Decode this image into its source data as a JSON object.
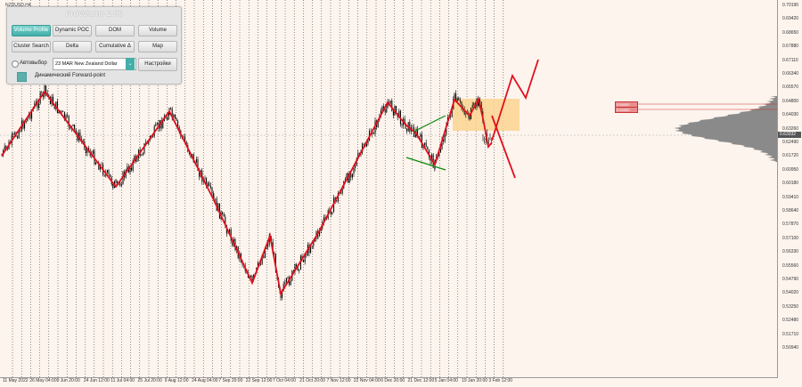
{
  "symbol_label": "NZDUSD,H4",
  "panel": {
    "title": "ProVolume 2.06",
    "buttons": [
      {
        "label": "Volume Profile",
        "active": true
      },
      {
        "label": "Dynamic POC",
        "active": false
      },
      {
        "label": "DOM",
        "active": false
      },
      {
        "label": "Volume",
        "active": false
      },
      {
        "label": "Cluster Search",
        "active": false
      },
      {
        "label": "Delta",
        "active": false
      },
      {
        "label": "Cumulative Δ",
        "active": false
      },
      {
        "label": "Map",
        "active": false
      }
    ],
    "auto_select_label": "Автовыбор",
    "symbol_select_value": "23 MAR New Zealand Dollar",
    "settings_label": "Настройки",
    "forward_point_label": "Динамический Forward-point"
  },
  "price_axis": [
    "0.70190",
    "0.69420",
    "0.68650",
    "0.67880",
    "0.67110",
    "0.66340",
    "0.65570",
    "0.64800",
    "0.64030",
    "0.63260",
    "0.62490",
    "0.61720",
    "0.60950",
    "0.60180",
    "0.59410",
    "0.58640",
    "0.57870",
    "0.57100",
    "0.56330",
    "0.55560",
    "0.54790",
    "0.54020",
    "0.53250",
    "0.52480",
    "0.51710",
    "0.50940"
  ],
  "current_price": "0.63332",
  "level_tags": [
    "0.65000",
    "0.64500"
  ],
  "time_axis": [
    "11 May 2022",
    "26 May 04:00",
    "9 Jun 20:00",
    "24 Jun 12:00",
    "11 Jul 04:00",
    "25 Jul 20:00",
    "9 Aug 12:00",
    "24 Aug 04:00",
    "7 Sep 20:00",
    "22 Sep 12:00",
    "7 Oct 04:00",
    "21 Oct 20:00",
    "7 Nov 12:00",
    "22 Nov 04:00",
    "6 Dec 20:00",
    "21 Dec 12:00",
    "5 Jan 04:00",
    "19 Jan 20:00",
    "3 Feb 12:00"
  ],
  "colors": {
    "background": "#fdf4ee",
    "zigzag": "#e0101c",
    "channel": "#0a8a0a",
    "box": "#fcd38f",
    "profile": "#8a8a8a",
    "candles": "#000000"
  }
}
